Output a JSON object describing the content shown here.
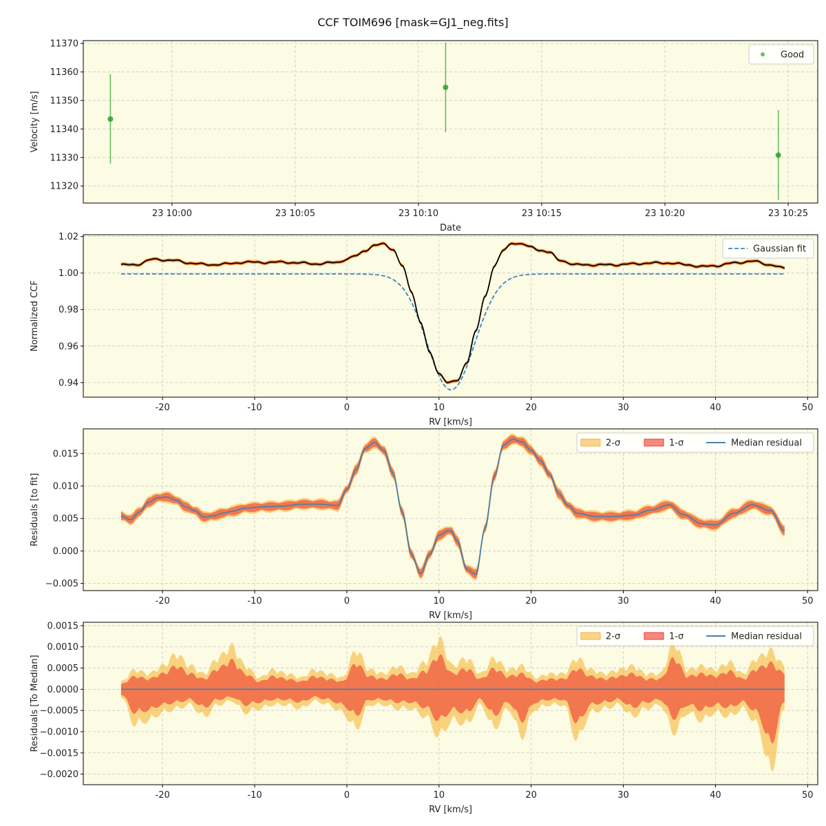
{
  "figure": {
    "suptitle": "CCF TOIM696 [mask=GJ1_neg.fits]",
    "background": "#fcfbe3",
    "grid": true
  },
  "chart_data": [
    {
      "type": "scatter",
      "xlabel": "Date",
      "ylabel": "Velocity [m/s]",
      "x_tick_labels": [
        "23 10:00",
        "23 10:05",
        "23 10:10",
        "23 10:15",
        "23 10:20",
        "23 10:25"
      ],
      "x_tick_minutes": [
        60,
        65,
        70,
        75,
        80,
        85
      ],
      "xlim_minutes": [
        56.4,
        86.2
      ],
      "ylim": [
        11314,
        11371
      ],
      "yticks": [
        11320,
        11330,
        11340,
        11350,
        11360,
        11370
      ],
      "legend": "upper right",
      "series": [
        {
          "name": "Good",
          "color": "#2ca02c",
          "points": [
            {
              "time": "23 09:57:30",
              "minute": 57.5,
              "y": 11343.5,
              "yerr": 15.7
            },
            {
              "time": "23 10:11:06",
              "minute": 71.1,
              "y": 11354.6,
              "yerr": 15.7
            },
            {
              "time": "23 10:24:36",
              "minute": 84.6,
              "y": 11330.8,
              "yerr": 15.8
            }
          ]
        }
      ]
    },
    {
      "type": "line",
      "xlabel": "RV [km/s]",
      "ylabel": "Normalized CCF",
      "xlim": [
        -28.6,
        51.1
      ],
      "ylim": [
        0.932,
        1.021
      ],
      "xticks": [
        -20,
        -10,
        0,
        10,
        20,
        30,
        40,
        50
      ],
      "yticks": [
        0.94,
        0.96,
        0.98,
        1.0,
        1.02
      ],
      "ytick_labels": [
        "0.94",
        "0.96",
        "0.98",
        "1.00",
        "1.02"
      ],
      "legend": "upper right",
      "rv_range": [
        -24.5,
        47.5
      ],
      "series": [
        {
          "name": "Gaussian fit",
          "style": "dashed",
          "color": "#3a87c2",
          "baseline": 0.9995,
          "center": 11.3,
          "depth": 0.0635,
          "sigma": 2.55
        },
        {
          "name": "",
          "style": "solid",
          "color": "#000000",
          "x": [
            -24.5,
            -23,
            -21,
            -19,
            -17,
            -15,
            -13,
            -11,
            -9,
            -7,
            -5,
            -3,
            -1,
            0,
            1,
            2,
            3,
            4,
            5,
            6,
            7,
            8,
            9,
            10,
            11,
            11.3,
            12,
            13,
            14,
            15,
            16,
            17,
            18,
            19,
            20,
            21,
            22,
            23,
            25,
            27,
            29,
            31,
            33,
            35,
            37,
            38.5,
            40,
            42,
            44,
            46,
            47.5
          ],
          "y": [
            1.0045,
            1.0045,
            1.0075,
            1.007,
            1.0055,
            1.0045,
            1.005,
            1.006,
            1.0058,
            1.006,
            1.0055,
            1.005,
            1.006,
            1.0075,
            1.0095,
            1.0125,
            1.015,
            1.016,
            1.013,
            1.004,
            0.99,
            0.973,
            0.956,
            0.945,
            0.94,
            0.94,
            0.941,
            0.951,
            0.968,
            0.987,
            1.004,
            1.0125,
            1.0165,
            1.016,
            1.014,
            1.0125,
            1.0115,
            1.007,
            1.0045,
            1.0045,
            1.0045,
            1.005,
            1.0055,
            1.0055,
            1.0045,
            1.0035,
            1.004,
            1.0055,
            1.0065,
            1.0045,
            1.0025
          ]
        },
        {
          "name": "",
          "style": "band",
          "color": "#ff7f2a",
          "halfwidth": 0.0009
        }
      ]
    },
    {
      "type": "area",
      "xlabel": "RV [km/s]",
      "ylabel": "Residuals [to fit]",
      "xlim": [
        -28.6,
        51.1
      ],
      "ylim": [
        -0.0061,
        0.0188
      ],
      "xticks": [
        -20,
        -10,
        0,
        10,
        20,
        30,
        40,
        50
      ],
      "yticks": [
        -0.005,
        0.0,
        0.005,
        0.01,
        0.015
      ],
      "ytick_labels": [
        "−0.005",
        "0.000",
        "0.005",
        "0.010",
        "0.015"
      ],
      "legend": "upper right",
      "series": [
        {
          "name": "2-σ",
          "color": "#f5b02c",
          "halfwidth": 0.0006
        },
        {
          "name": "1-σ",
          "color": "#ee3b2f",
          "halfwidth": 0.0003
        },
        {
          "name": "Median residual",
          "color": "#4a7fad",
          "x": [
            -24.5,
            -23.5,
            -22.5,
            -21.5,
            -20.5,
            -19.5,
            -18.5,
            -17.5,
            -16.5,
            -15.5,
            -14.5,
            -13.5,
            -12.5,
            -11,
            -9,
            -7,
            -5,
            -3,
            -1,
            0,
            1,
            2,
            3,
            4,
            5,
            6,
            7,
            8,
            9,
            10,
            11,
            11.3,
            12,
            13,
            14,
            15,
            16,
            17,
            18,
            19,
            20,
            21,
            22,
            23,
            24,
            25,
            27,
            29,
            31,
            33,
            35,
            36.5,
            38.5,
            40,
            42,
            44,
            46,
            47.5
          ],
          "y": [
            0.0054,
            0.0048,
            0.006,
            0.0075,
            0.0082,
            0.0083,
            0.0078,
            0.0068,
            0.0062,
            0.0052,
            0.0054,
            0.0058,
            0.0061,
            0.0066,
            0.0068,
            0.0069,
            0.0072,
            0.0072,
            0.007,
            0.0095,
            0.0125,
            0.0158,
            0.0167,
            0.0155,
            0.012,
            0.006,
            -0.0005,
            -0.0035,
            -0.0005,
            0.0024,
            0.0031,
            0.0031,
            0.0015,
            -0.0028,
            -0.0036,
            0.0035,
            0.0115,
            0.0163,
            0.0172,
            0.0168,
            0.0155,
            0.0139,
            0.0118,
            0.0088,
            0.007,
            0.0058,
            0.0053,
            0.0053,
            0.0055,
            0.0063,
            0.0071,
            0.0056,
            0.0042,
            0.004,
            0.0058,
            0.0071,
            0.0062,
            0.0031
          ]
        }
      ]
    },
    {
      "type": "area",
      "xlabel": "RV [km/s]",
      "ylabel": "Residuals [To Median]",
      "xlim": [
        -28.6,
        51.1
      ],
      "ylim": [
        -0.00225,
        0.00158
      ],
      "xticks": [
        -20,
        -10,
        0,
        10,
        20,
        30,
        40,
        50
      ],
      "yticks": [
        -0.002,
        -0.0015,
        -0.001,
        -0.0005,
        0.0,
        0.0005,
        0.001,
        0.0015
      ],
      "ytick_labels": [
        "−0.0020",
        "−0.0015",
        "−0.0010",
        "−0.0005",
        "0.0000",
        "0.0005",
        "0.0010",
        "0.0015"
      ],
      "legend": "upper right",
      "series": [
        {
          "name": "2-σ",
          "color": "#f5b02c",
          "x": [
            -24.5,
            -23,
            -21.5,
            -20,
            -18.5,
            -17,
            -15.5,
            -14,
            -12.5,
            -11,
            -9.5,
            -8,
            -6.5,
            -5,
            -3.5,
            -2,
            -0.5,
            1,
            2.5,
            4,
            5.5,
            7,
            8.5,
            10,
            11.5,
            13,
            14.5,
            16,
            17.5,
            19,
            20.5,
            22,
            23.5,
            25,
            26.5,
            28,
            29.5,
            31,
            32.5,
            34,
            35.5,
            37,
            38.5,
            40,
            41.5,
            43,
            44.5,
            46,
            47.5
          ],
          "upper": [
            0.0002,
            0.0005,
            0.0004,
            0.0006,
            0.0009,
            0.0006,
            0.0004,
            0.0008,
            0.0011,
            0.0006,
            0.0003,
            0.0005,
            0.0004,
            0.0003,
            0.0005,
            0.0004,
            0.0003,
            0.001,
            0.0005,
            0.0004,
            0.0006,
            0.0004,
            0.0007,
            0.0013,
            0.0006,
            0.0008,
            0.0004,
            0.0008,
            0.0005,
            0.0006,
            0.0003,
            0.0004,
            0.0004,
            0.0008,
            0.0005,
            0.0004,
            0.0005,
            0.0006,
            0.0004,
            0.0004,
            0.0012,
            0.0005,
            0.0006,
            0.0005,
            0.0007,
            0.0004,
            0.0008,
            0.001,
            0.0006
          ],
          "lower": [
            -0.0002,
            -0.0009,
            -0.0008,
            -0.0006,
            -0.0005,
            -0.0004,
            -0.0007,
            -0.0004,
            -0.0003,
            -0.0006,
            -0.0005,
            -0.0004,
            -0.0004,
            -0.0005,
            -0.0003,
            -0.0004,
            -0.0006,
            -0.001,
            -0.0004,
            -0.0004,
            -0.0005,
            -0.0005,
            -0.0007,
            -0.0012,
            -0.0008,
            -0.0009,
            -0.0004,
            -0.001,
            -0.0005,
            -0.0012,
            -0.0005,
            -0.0004,
            -0.0004,
            -0.0013,
            -0.0006,
            -0.0005,
            -0.0004,
            -0.0007,
            -0.0005,
            -0.0004,
            -0.0011,
            -0.0006,
            -0.0008,
            -0.0006,
            -0.0007,
            -0.0005,
            -0.0009,
            -0.0021,
            -0.0005
          ]
        },
        {
          "name": "1-σ",
          "color": "#ee3b2f",
          "scale": 0.66
        },
        {
          "name": "Median residual",
          "color": "#4a7fad",
          "x": [
            -24.5,
            47.5
          ],
          "y": [
            0.0,
            0.0
          ]
        }
      ]
    }
  ]
}
